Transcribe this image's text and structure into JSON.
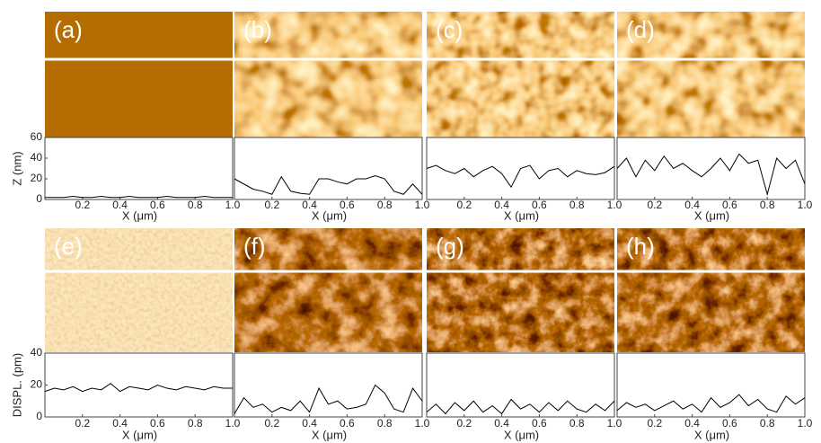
{
  "chart_data": [
    {
      "type": "line",
      "label": "(a)",
      "xlabel": "X (μm)",
      "ylabel": "Z (nm)",
      "color": "#000000",
      "xlim": [
        0,
        1
      ],
      "ylim": [
        0,
        60
      ],
      "yticks": [
        0,
        20,
        40,
        60
      ],
      "xticks": [
        0.2,
        0.4,
        0.6,
        0.8,
        {
          "value": 1,
          "label": "1.0"
        }
      ],
      "x": [
        0,
        0.05,
        0.1,
        0.15,
        0.2,
        0.25,
        0.3,
        0.35,
        0.4,
        0.45,
        0.5,
        0.55,
        0.6,
        0.65,
        0.7,
        0.75,
        0.8,
        0.85,
        0.9,
        0.95,
        1
      ],
      "values": [
        2,
        2,
        2,
        3,
        2,
        2,
        3,
        2,
        2,
        3,
        2,
        2,
        2,
        3,
        2,
        2,
        2,
        3,
        2,
        2,
        2
      ]
    },
    {
      "type": "line",
      "label": "(b)",
      "xlabel": "X (μm)",
      "color": "#000000",
      "xlim": [
        0,
        1
      ],
      "ylim": [
        0,
        60
      ],
      "xticks": [
        0.2,
        0.4,
        0.6,
        0.8,
        {
          "value": 1,
          "label": "1.0"
        }
      ],
      "x": [
        0,
        0.05,
        0.1,
        0.15,
        0.2,
        0.25,
        0.3,
        0.35,
        0.4,
        0.45,
        0.5,
        0.55,
        0.6,
        0.65,
        0.7,
        0.75,
        0.8,
        0.85,
        0.9,
        0.95,
        1
      ],
      "values": [
        20,
        15,
        10,
        8,
        5,
        22,
        8,
        6,
        5,
        20,
        20,
        17,
        15,
        20,
        20,
        23,
        20,
        8,
        5,
        15,
        5
      ]
    },
    {
      "type": "line",
      "label": "(c)",
      "xlabel": "X (μm)",
      "color": "#000000",
      "xlim": [
        0,
        1
      ],
      "ylim": [
        0,
        60
      ],
      "xticks": [
        0.2,
        0.4,
        0.6,
        0.8,
        {
          "value": 1,
          "label": "1.0"
        }
      ],
      "x": [
        0,
        0.05,
        0.1,
        0.15,
        0.2,
        0.25,
        0.3,
        0.35,
        0.4,
        0.45,
        0.5,
        0.55,
        0.6,
        0.65,
        0.7,
        0.75,
        0.8,
        0.85,
        0.9,
        0.95,
        1
      ],
      "values": [
        30,
        33,
        28,
        25,
        30,
        22,
        28,
        32,
        25,
        12,
        30,
        33,
        20,
        28,
        30,
        22,
        28,
        25,
        24,
        26,
        32
      ]
    },
    {
      "type": "line",
      "label": "(d)",
      "xlabel": "X (μm)",
      "color": "#000000",
      "xlim": [
        0,
        1
      ],
      "ylim": [
        0,
        60
      ],
      "xticks": [
        0.2,
        0.4,
        0.6,
        0.8,
        {
          "value": 1,
          "label": "1.0"
        }
      ],
      "x": [
        0,
        0.05,
        0.1,
        0.15,
        0.2,
        0.25,
        0.3,
        0.35,
        0.4,
        0.45,
        0.5,
        0.55,
        0.6,
        0.65,
        0.7,
        0.75,
        0.8,
        0.85,
        0.9,
        0.95,
        1
      ],
      "values": [
        30,
        40,
        22,
        38,
        28,
        42,
        30,
        35,
        28,
        22,
        30,
        40,
        28,
        44,
        35,
        38,
        5,
        40,
        30,
        38,
        15
      ]
    },
    {
      "type": "line",
      "label": "(e)",
      "xlabel": "X (μm)",
      "ylabel": "DISPL. (pm)",
      "color": "#000000",
      "xlim": [
        0,
        1
      ],
      "ylim": [
        0,
        40
      ],
      "yticks": [
        0,
        20,
        40
      ],
      "xticks": [
        0.2,
        0.4,
        0.6,
        0.8,
        {
          "value": 1,
          "label": "1.0"
        }
      ],
      "x": [
        0,
        0.05,
        0.1,
        0.15,
        0.2,
        0.25,
        0.3,
        0.35,
        0.4,
        0.45,
        0.5,
        0.55,
        0.6,
        0.65,
        0.7,
        0.75,
        0.8,
        0.85,
        0.9,
        0.95,
        1
      ],
      "values": [
        16,
        18,
        17,
        19,
        16,
        18,
        17,
        21,
        16,
        19,
        18,
        17,
        20,
        18,
        17,
        19,
        18,
        17,
        19,
        18,
        18
      ]
    },
    {
      "type": "line",
      "label": "(f)",
      "xlabel": "X (μm)",
      "color": "#000000",
      "xlim": [
        0,
        1
      ],
      "ylim": [
        0,
        40
      ],
      "xticks": [
        0.2,
        0.4,
        0.6,
        0.8,
        {
          "value": 1,
          "label": "1.0"
        }
      ],
      "x": [
        0,
        0.05,
        0.1,
        0.15,
        0.2,
        0.25,
        0.3,
        0.35,
        0.4,
        0.45,
        0.5,
        0.55,
        0.6,
        0.65,
        0.7,
        0.75,
        0.8,
        0.85,
        0.9,
        0.95,
        1
      ],
      "values": [
        2,
        12,
        6,
        8,
        3,
        6,
        4,
        10,
        3,
        18,
        8,
        10,
        5,
        6,
        8,
        20,
        15,
        5,
        3,
        18,
        10
      ]
    },
    {
      "type": "line",
      "label": "(g)",
      "xlabel": "X (μm)",
      "color": "#000000",
      "xlim": [
        0,
        1
      ],
      "ylim": [
        0,
        40
      ],
      "xticks": [
        0.2,
        0.4,
        0.6,
        0.8,
        {
          "value": 1,
          "label": "1.0"
        }
      ],
      "x": [
        0,
        0.05,
        0.1,
        0.15,
        0.2,
        0.25,
        0.3,
        0.35,
        0.4,
        0.45,
        0.5,
        0.55,
        0.6,
        0.65,
        0.7,
        0.75,
        0.8,
        0.85,
        0.9,
        0.95,
        1
      ],
      "values": [
        3,
        8,
        2,
        9,
        4,
        10,
        3,
        7,
        2,
        11,
        5,
        8,
        3,
        9,
        4,
        10,
        5,
        3,
        8,
        4,
        10
      ]
    },
    {
      "type": "line",
      "label": "(h)",
      "xlabel": "X (μm)",
      "color": "#000000",
      "xlim": [
        0,
        1
      ],
      "ylim": [
        0,
        40
      ],
      "xticks": [
        0.2,
        0.4,
        0.6,
        0.8,
        {
          "value": 1,
          "label": "1.0"
        }
      ],
      "x": [
        0,
        0.05,
        0.1,
        0.15,
        0.2,
        0.25,
        0.3,
        0.35,
        0.4,
        0.45,
        0.5,
        0.55,
        0.6,
        0.65,
        0.7,
        0.75,
        0.8,
        0.85,
        0.9,
        0.95,
        1
      ],
      "values": [
        4,
        9,
        6,
        8,
        4,
        7,
        10,
        5,
        8,
        3,
        12,
        6,
        9,
        14,
        7,
        11,
        5,
        3,
        13,
        8,
        12
      ]
    }
  ]
}
